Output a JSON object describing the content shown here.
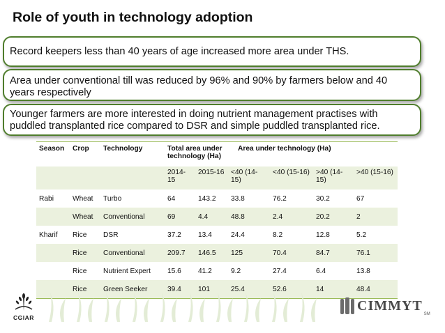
{
  "title": "Role of youth in technology adoption",
  "callouts": [
    "Record keepers less than 40 years of age increased more area under THS.",
    "Area under conventional till was reduced by 96% and 90% by farmers below and 40 years respectively",
    "Younger farmers are more interested in doing nutrient management practises with puddled transplanted rice compared to DSR and simple puddled transplanted rice."
  ],
  "table": {
    "headers": {
      "season": "Season",
      "crop": "Crop",
      "technology": "Technology",
      "total_area": "Total area under technology (Ha)",
      "area_under_tech": "Area under technology (Ha)"
    },
    "subheaders": [
      "2014-15",
      "2015-16",
      "<40 (14-15)",
      "<40 (15-16)",
      ">40 (14-15)",
      ">40 (15-16)"
    ],
    "rows": [
      {
        "season": "Rabi",
        "crop": "Wheat",
        "technology": "Turbo",
        "v": [
          "64",
          "143.2",
          "33.8",
          "76.2",
          "30.2",
          "67"
        ]
      },
      {
        "season": "",
        "crop": "Wheat",
        "technology": "Conventional",
        "v": [
          "69",
          "4.4",
          "48.8",
          "2.4",
          "20.2",
          "2"
        ]
      },
      {
        "season": "Kharif",
        "crop": "Rice",
        "technology": "DSR",
        "v": [
          "37.2",
          "13.4",
          "24.4",
          "8.2",
          "12.8",
          "5.2"
        ]
      },
      {
        "season": "",
        "crop": "Rice",
        "technology": "Conventional",
        "v": [
          "209.7",
          "146.5",
          "125",
          "70.4",
          "84.7",
          "76.1"
        ]
      },
      {
        "season": "",
        "crop": "Rice",
        "technology": "Nutrient Expert",
        "v": [
          "15.6",
          "41.2",
          "9.2",
          "27.4",
          "6.4",
          "13.8"
        ]
      },
      {
        "season": "",
        "crop": "Rice",
        "technology": "Green Seeker",
        "v": [
          "39.4",
          "101",
          "25.4",
          "52.6",
          "14",
          "48.4"
        ]
      }
    ]
  },
  "footer": {
    "left_logo_label": "CGIAR",
    "right_logo_label": "CIMMYT",
    "right_logo_mark": "SM"
  },
  "colors": {
    "callout_border": "#4f7d2c",
    "table_band": "#ebf1de",
    "table_rule": "#9bbb59",
    "decor": "#e3ecd6"
  }
}
